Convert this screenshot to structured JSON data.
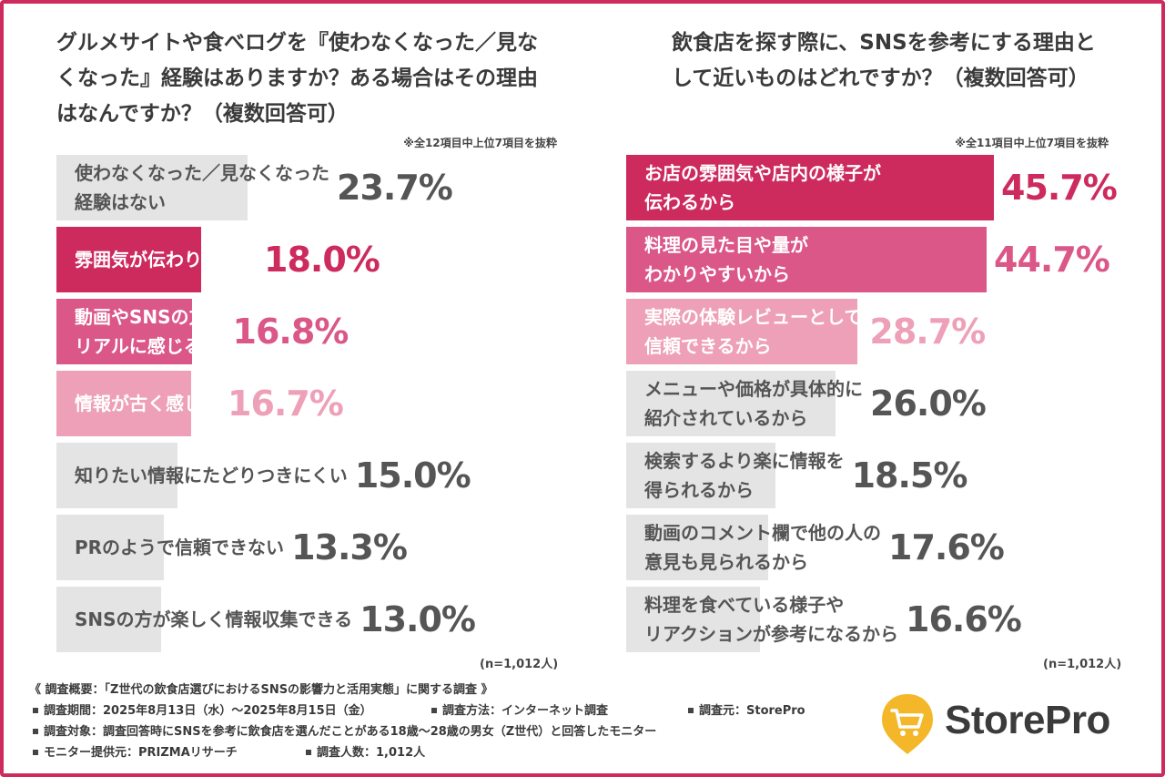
{
  "chart_data": [
    {
      "type": "bar",
      "orientation": "horizontal",
      "title": "グルメサイトや食べログを『使わなくなった／見なくなった』経験はありますか？ある場合はその理由はなんですか？（複数回答可）",
      "note": "※全12項目中上位7項目を抜粋",
      "n_label": "(n=1,012人)",
      "unit": "%",
      "xlim": [
        0,
        50
      ],
      "categories": [
        "使わなくなった／見なくなった\n経験はない",
        "雰囲気が伝わりづらい",
        "動画やSNSの方が\nリアルに感じる",
        "情報が古く感じる",
        "知りたい情報にたどりつきにくい",
        "PRのようで信頼できない",
        "SNSの方が楽しく情報収集できる"
      ],
      "values": [
        23.7,
        18.0,
        16.8,
        16.7,
        15.0,
        13.3,
        13.0
      ],
      "value_labels": [
        "23.7%",
        "18.0%",
        "16.8%",
        "16.7%",
        "15.0%",
        "13.3%",
        "13.0%"
      ],
      "bar_colors": [
        "#e4e4e4",
        "#cd2a5e",
        "#da5787",
        "#eea0b8",
        "#e4e4e4",
        "#e4e4e4",
        "#e4e4e4"
      ],
      "label_colors": [
        "#555555",
        "#ffffff",
        "#ffffff",
        "#ffffff",
        "#555555",
        "#555555",
        "#555555"
      ],
      "value_colors": [
        "#555555",
        "#cd2a5e",
        "#da5787",
        "#eea0b8",
        "#555555",
        "#555555",
        "#555555"
      ]
    },
    {
      "type": "bar",
      "orientation": "horizontal",
      "title": "飲食店を探す際に、SNSを参考にする理由として近いものはどれですか？（複数回答可）",
      "note": "※全11項目中上位7項目を抜粋",
      "n_label": "(n=1,012人)",
      "unit": "%",
      "xlim": [
        0,
        50
      ],
      "categories": [
        "お店の雰囲気や店内の様子が\n伝わるから",
        "料理の見た目や量が\nわかりやすいから",
        "実際の体験レビューとして\n信頼できるから",
        "メニューや価格が具体的に\n紹介されているから",
        "検索するより楽に情報を\n得られるから",
        "動画のコメント欄で他の人の\n意見も見られるから",
        "料理を食べている様子や\nリアクションが参考になるから"
      ],
      "values": [
        45.7,
        44.7,
        28.7,
        26.0,
        18.5,
        17.6,
        16.6
      ],
      "value_labels": [
        "45.7%",
        "44.7%",
        "28.7%",
        "26.0%",
        "18.5%",
        "17.6%",
        "16.6%"
      ],
      "bar_colors": [
        "#cd2a5e",
        "#da5787",
        "#eea0b8",
        "#e4e4e4",
        "#e4e4e4",
        "#e4e4e4",
        "#e4e4e4"
      ],
      "label_colors": [
        "#ffffff",
        "#ffffff",
        "#ffffff",
        "#555555",
        "#555555",
        "#555555",
        "#555555"
      ],
      "value_colors": [
        "#cd2a5e",
        "#da5787",
        "#eea0b8",
        "#555555",
        "#555555",
        "#555555",
        "#555555"
      ]
    }
  ],
  "footer": {
    "heading": "《 調査概要：「Z世代の飲食店選びにおけるSNSの影響力と活用実態」に関する調査 》",
    "items": [
      [
        "調査期間：2025年8月13日（水）〜2025年8月15日（金）",
        "調査方法：インターネット調査",
        "調査元：StorePro"
      ],
      [
        "調査対象：調査回答時にSNSを参考に飲食店を選んだことがある18歳〜28歳の男女（Z世代）と回答したモニター"
      ],
      [
        "モニター提供元：PRIZMAリサーチ",
        "調査人数：1,012人"
      ]
    ]
  },
  "logo": {
    "text": "StorePro",
    "pin_color": "#f5b72a",
    "cart_color": "#ffffff"
  },
  "theme": {
    "accent": "#cd2a5e",
    "text": "#3a3a3a"
  }
}
